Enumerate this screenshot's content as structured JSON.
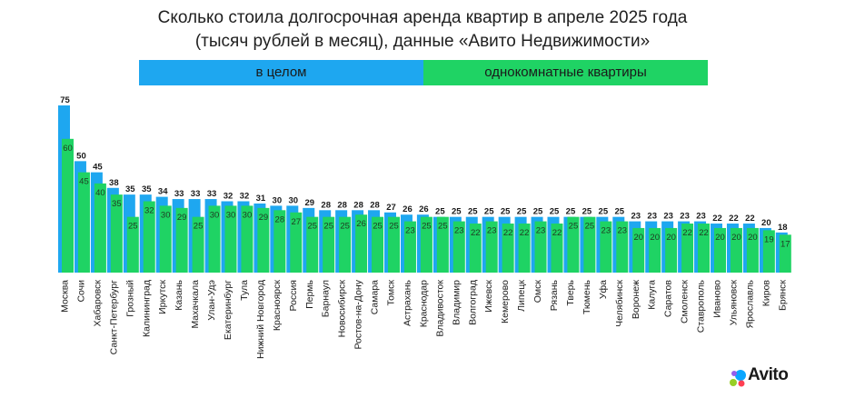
{
  "title_line_1": "Сколько стоила долгосрочная аренда квартир в апреле 2025 года",
  "title_line_2": "(тысяч рублей в месяц), данные «Авито Недвижимости»",
  "legend": {
    "total_label": "в целом",
    "one_room_label": "однокомнатные квартиры"
  },
  "colors": {
    "total": "#1ea7f0",
    "one_room": "#1fd364",
    "text": "#1a1a1a"
  },
  "logo_text": "Avito",
  "chart_data": {
    "type": "bar",
    "title": "Сколько стоила долгосрочная аренда квартир в апреле 2025 года (тысяч рублей в месяц), данные «Авито Недвижимости»",
    "xlabel": "",
    "ylabel": "",
    "ylim": [
      0,
      80
    ],
    "grid": false,
    "legend_position": "top",
    "categories": [
      "Москва",
      "Сочи",
      "Хабаровск",
      "Санкт-Петербург",
      "Грозный",
      "Калининград",
      "Иркутск",
      "Казань",
      "Махачкала",
      "Улан-Удэ",
      "Екатеринбург",
      "Тула",
      "Нижний Новгород",
      "Красноярск",
      "Россия",
      "Пермь",
      "Барнаул",
      "Новосибирск",
      "Ростов-на-Дону",
      "Самара",
      "Томск",
      "Астрахань",
      "Краснодар",
      "Владивосток",
      "Владимир",
      "Волгоград",
      "Ижевск",
      "Кемерово",
      "Липецк",
      "Омск",
      "Рязань",
      "Тверь",
      "Тюмень",
      "Уфа",
      "Челябинск",
      "Воронеж",
      "Калуга",
      "Саратов",
      "Смоленск",
      "Ставрополь",
      "Иваново",
      "Ульяновск",
      "Ярославль",
      "Киров",
      "Брянск"
    ],
    "series": [
      {
        "name": "в целом",
        "values": [
          75,
          50,
          45,
          38,
          35,
          35,
          34,
          33,
          33,
          33,
          32,
          32,
          31,
          30,
          30,
          29,
          28,
          28,
          28,
          28,
          27,
          26,
          26,
          25,
          25,
          25,
          25,
          25,
          25,
          25,
          25,
          25,
          25,
          25,
          25,
          23,
          23,
          23,
          23,
          23,
          22,
          22,
          22,
          20,
          18
        ]
      },
      {
        "name": "однокомнатные квартиры",
        "values": [
          60,
          45,
          40,
          35,
          25,
          32,
          30,
          29,
          25,
          30,
          30,
          30,
          29,
          28,
          27,
          25,
          25,
          25,
          26,
          25,
          25,
          23,
          25,
          25,
          23,
          22,
          23,
          22,
          22,
          23,
          22,
          25,
          25,
          23,
          23,
          20,
          20,
          20,
          22,
          22,
          20,
          20,
          20,
          19,
          17
        ]
      }
    ]
  }
}
